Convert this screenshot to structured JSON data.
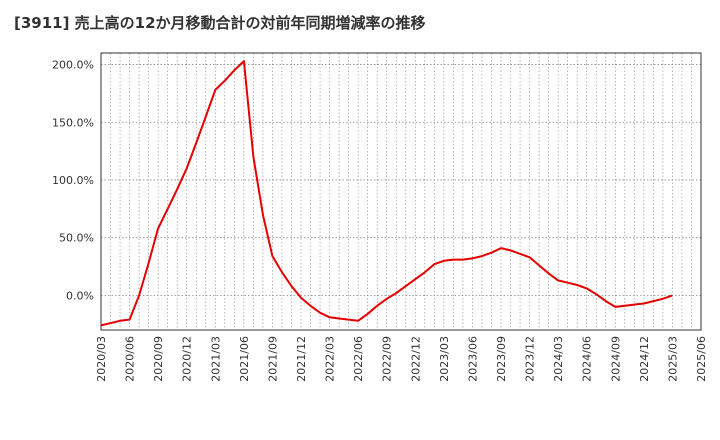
{
  "chart_data": {
    "type": "line",
    "title": "[3911]  売上高の12か月移動合計の対前年同期増減率の推移",
    "xlabel": "",
    "ylabel": "",
    "ylim": [
      -30,
      210
    ],
    "yticks": [
      0,
      50,
      100,
      150,
      200
    ],
    "ytick_labels": [
      "0.0%",
      "50.0%",
      "100.0%",
      "150.0%",
      "200.0%"
    ],
    "x_ticks": [
      "2020/03",
      "2020/06",
      "2020/09",
      "2020/12",
      "2021/03",
      "2021/06",
      "2021/09",
      "2021/12",
      "2022/03",
      "2022/06",
      "2022/09",
      "2022/12",
      "2023/03",
      "2023/06",
      "2023/09",
      "2023/12",
      "2024/03",
      "2024/06",
      "2024/09",
      "2024/12",
      "2025/03",
      "2025/06"
    ],
    "grid": true,
    "colors": {
      "line": "#e60000",
      "grid": "#888888",
      "axis": "#333333"
    },
    "series": [
      {
        "name": "",
        "x": [
          "2020/03",
          "2020/04",
          "2020/05",
          "2020/06",
          "2020/07",
          "2020/08",
          "2020/09",
          "2020/10",
          "2020/11",
          "2020/12",
          "2021/01",
          "2021/02",
          "2021/03",
          "2021/04",
          "2021/05",
          "2021/06",
          "2021/07",
          "2021/08",
          "2021/09",
          "2021/10",
          "2021/11",
          "2021/12",
          "2022/01",
          "2022/02",
          "2022/03",
          "2022/04",
          "2022/05",
          "2022/06",
          "2022/07",
          "2022/08",
          "2022/09",
          "2022/10",
          "2022/11",
          "2022/12",
          "2023/01",
          "2023/02",
          "2023/03",
          "2023/04",
          "2023/05",
          "2023/06",
          "2023/07",
          "2023/08",
          "2023/09",
          "2023/10",
          "2023/11",
          "2023/12",
          "2024/01",
          "2024/02",
          "2024/03",
          "2024/04",
          "2024/05",
          "2024/06",
          "2024/07",
          "2024/08",
          "2024/09",
          "2024/10",
          "2024/11",
          "2024/12",
          "2025/01",
          "2025/02",
          "2025/03"
        ],
        "values": [
          -26,
          -24,
          -22,
          -21,
          0,
          28,
          58,
          75,
          92,
          110,
          132,
          155,
          178,
          186,
          195,
          203,
          120,
          70,
          34,
          20,
          8,
          -2,
          -9,
          -15,
          -19,
          -20,
          -21,
          -22,
          -16,
          -9,
          -3,
          2,
          8,
          14,
          20,
          27,
          30,
          31,
          31,
          32,
          34,
          37,
          41,
          39,
          36,
          33,
          26,
          19,
          13,
          11,
          9,
          6,
          1,
          -5,
          -10,
          -9,
          -8,
          -7,
          -5,
          -3,
          0
        ]
      }
    ]
  }
}
